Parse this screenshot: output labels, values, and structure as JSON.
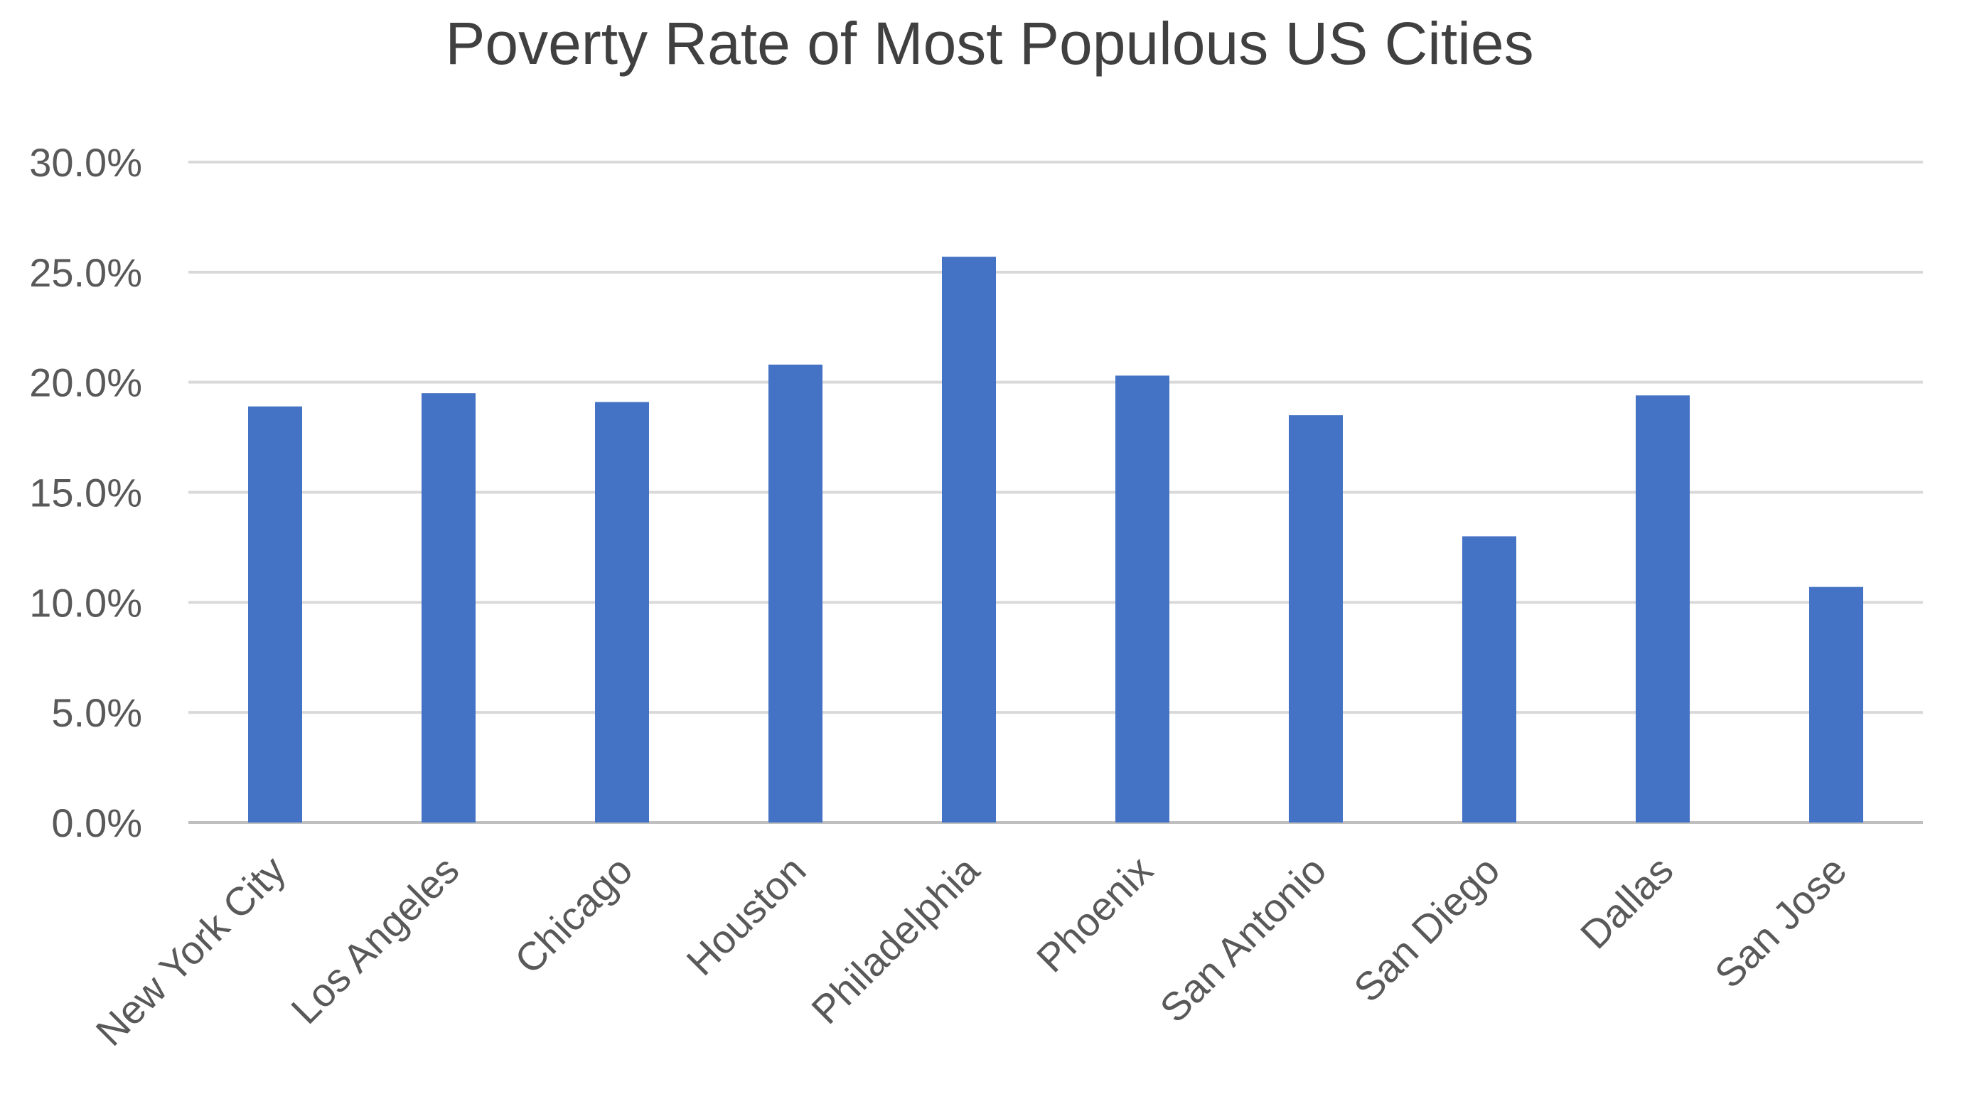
{
  "chart_data": {
    "type": "bar",
    "title": "Poverty Rate of Most Populous US Cities",
    "xlabel": "",
    "ylabel": "",
    "categories": [
      "New York City",
      "Los Angeles",
      "Chicago",
      "Houston",
      "Philadelphia",
      "Phoenix",
      "San Antonio",
      "San Diego",
      "Dallas",
      "San Jose"
    ],
    "values": [
      18.9,
      19.5,
      19.1,
      20.8,
      25.7,
      20.3,
      18.5,
      13.0,
      19.4,
      10.7
    ],
    "ylim": [
      0,
      30
    ],
    "yticks": [
      0,
      5,
      10,
      15,
      20,
      25,
      30
    ],
    "ytick_labels": [
      "0.0%",
      "5.0%",
      "10.0%",
      "15.0%",
      "20.0%",
      "25.0%",
      "30.0%"
    ],
    "grid": true,
    "legend": "none",
    "bar_color": "#4472c4"
  }
}
